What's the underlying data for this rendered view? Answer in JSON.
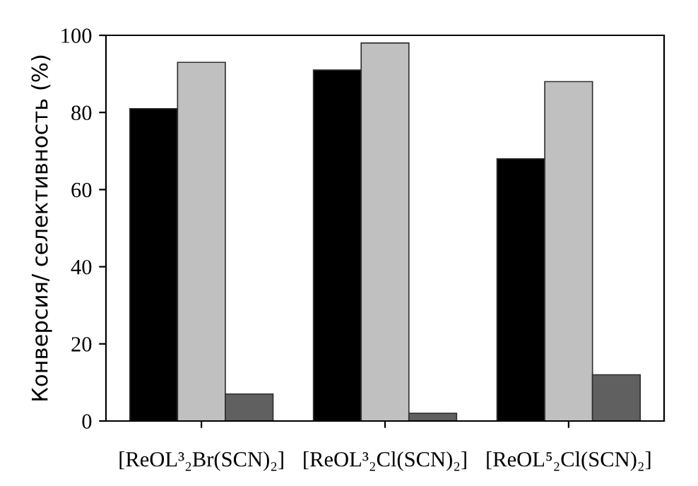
{
  "chart_data": {
    "type": "bar",
    "ylabel": "Конверсия/ селективность (%)",
    "categories": [
      "[ReOL³₂Br(SCN)₂]",
      "[ReOL³₂Cl(SCN)₂]",
      "[ReOL⁵₂Cl(SCN)₂]"
    ],
    "series": [
      {
        "color": "#000000",
        "values": [
          81,
          91,
          68
        ]
      },
      {
        "color": "#c0c0c0",
        "values": [
          93,
          98,
          88
        ]
      },
      {
        "color": "#606060",
        "values": [
          7,
          2,
          12
        ]
      }
    ],
    "ylim": [
      0,
      100
    ],
    "yticks": [
      0,
      20,
      40,
      60,
      80,
      100
    ],
    "grid": false,
    "legend": false
  }
}
